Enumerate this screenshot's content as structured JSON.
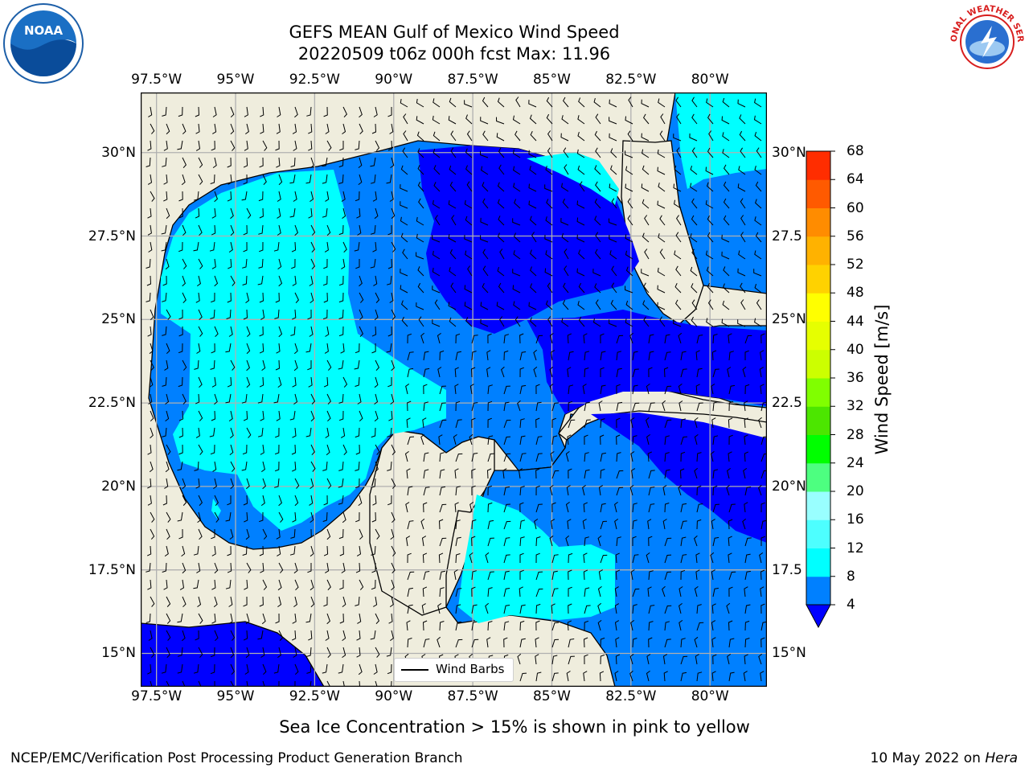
{
  "title": {
    "line1": "GEFS MEAN Gulf of Mexico Wind Speed",
    "line2": "20220509 t06z 000h fcst   Max: 11.96"
  },
  "map": {
    "lon_ticks": [
      "97.5°W",
      "95°W",
      "92.5°W",
      "90°W",
      "87.5°W",
      "85°W",
      "82.5°W",
      "80°W"
    ],
    "lat_ticks_left": [
      "30°N",
      "27.5°N",
      "25°N",
      "22.5°N",
      "20°N",
      "17.5°N",
      "15°N"
    ],
    "lat_ticks_right": [
      "30°N",
      "27.5",
      "25°N",
      "22.5",
      "20°N",
      "17.5",
      "15°N"
    ],
    "lon_range": [
      -98,
      -78.2
    ],
    "lat_range": [
      14,
      31.8
    ],
    "legend_label": "Wind Barbs",
    "colors": {
      "land": "#efeddd",
      "ocean": "#0080ff"
    }
  },
  "colorbar": {
    "title": "Wind Speed [m/s]",
    "levels": [
      "4",
      "8",
      "12",
      "16",
      "20",
      "24",
      "28",
      "32",
      "36",
      "40",
      "44",
      "48",
      "52",
      "56",
      "60",
      "64",
      "68"
    ],
    "colors": [
      "#0080ff",
      "#00ffff",
      "#4dffff",
      "#99ffff",
      "#4dff80",
      "#00ff00",
      "#4ce600",
      "#80ff00",
      "#ccff00",
      "#e6ff00",
      "#ffff00",
      "#ffd200",
      "#ffb200",
      "#ff8c00",
      "#ff5a00",
      "#ff2d00"
    ],
    "under_color": "#0000ff"
  },
  "caption": "Sea Ice Concentration > 15% is shown in pink to yellow",
  "footer": {
    "left": "NCEP/EMC/Verification Post Processing Product Generation Branch",
    "date": "10 May 2022 on",
    "host": "Hera"
  },
  "logos": {
    "noaa": "NOAA",
    "nws_text": "NATIONAL WEATHER SERVICE"
  }
}
